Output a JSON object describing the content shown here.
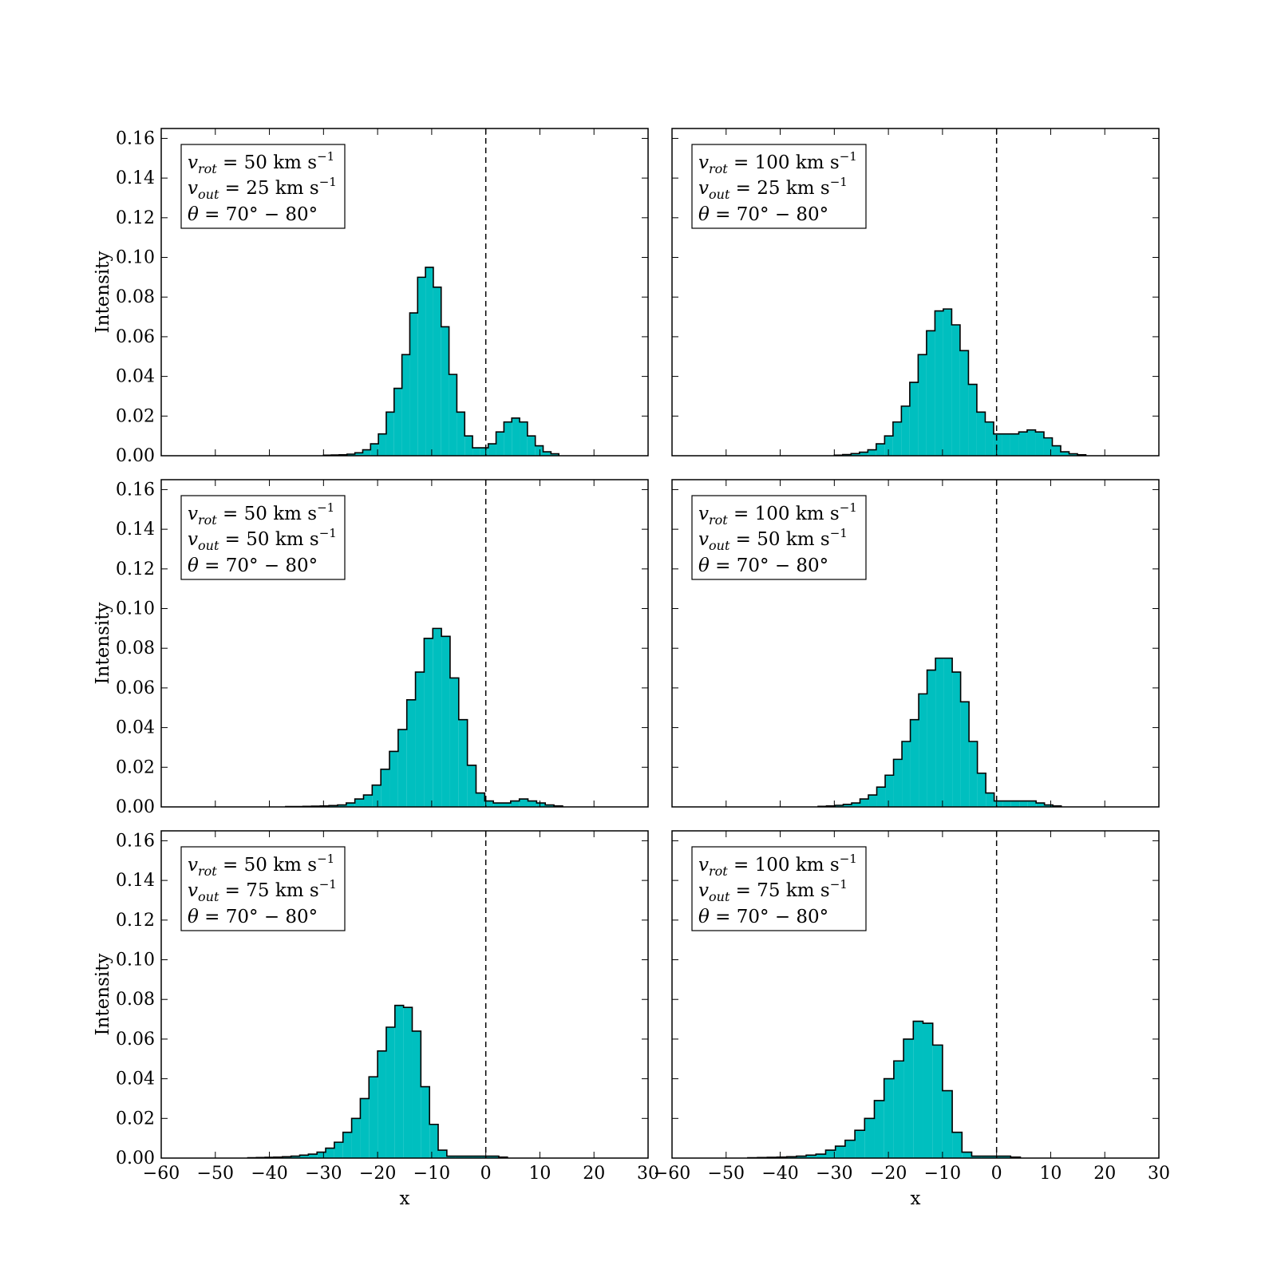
{
  "chart_data": [
    {
      "type": "histogram",
      "xlabel": "",
      "ylabel": "Intensity",
      "xlim": [
        -60,
        30
      ],
      "ylim": [
        0,
        0.165
      ],
      "xticks": [
        -60,
        -50,
        -40,
        -30,
        -20,
        -10,
        0,
        10,
        20,
        30
      ],
      "yticks": [
        0.0,
        0.02,
        0.04,
        0.06,
        0.08,
        0.1,
        0.12,
        0.14,
        0.16
      ],
      "ref_line_x": 0,
      "annotation": {
        "v_rot": "50",
        "v_out": "25",
        "theta": "70° − 80°"
      },
      "bin_edges_start": -30,
      "bin_width": 1.45,
      "values": [
        0.0003,
        0.0004,
        0.0005,
        0.0008,
        0.0015,
        0.003,
        0.006,
        0.011,
        0.022,
        0.034,
        0.051,
        0.072,
        0.09,
        0.095,
        0.085,
        0.065,
        0.041,
        0.022,
        0.01,
        0.004,
        0.004,
        0.006,
        0.012,
        0.017,
        0.019,
        0.017,
        0.01,
        0.005,
        0.002,
        0.001
      ]
    },
    {
      "type": "histogram",
      "xlabel": "",
      "ylabel": "",
      "xlim": [
        -60,
        30
      ],
      "ylim": [
        0,
        0.165
      ],
      "xticks": [
        -60,
        -50,
        -40,
        -30,
        -20,
        -10,
        0,
        10,
        20,
        30
      ],
      "yticks": [
        0.0,
        0.02,
        0.04,
        0.06,
        0.08,
        0.1,
        0.12,
        0.14,
        0.16
      ],
      "ref_line_x": 0,
      "annotation": {
        "v_rot": "100",
        "v_out": "25",
        "theta": "70° − 80°"
      },
      "bin_edges_start": -30,
      "bin_width": 1.55,
      "values": [
        0.0003,
        0.0006,
        0.0011,
        0.0018,
        0.003,
        0.006,
        0.01,
        0.017,
        0.025,
        0.037,
        0.051,
        0.063,
        0.073,
        0.074,
        0.066,
        0.053,
        0.036,
        0.022,
        0.017,
        0.011,
        0.011,
        0.011,
        0.012,
        0.013,
        0.012,
        0.009,
        0.005,
        0.002,
        0.001,
        0.0005
      ]
    },
    {
      "type": "histogram",
      "xlabel": "",
      "ylabel": "Intensity",
      "xlim": [
        -60,
        30
      ],
      "ylim": [
        0,
        0.165
      ],
      "xticks": [
        -60,
        -50,
        -40,
        -30,
        -20,
        -10,
        0,
        10,
        20,
        30
      ],
      "yticks": [
        0.0,
        0.02,
        0.04,
        0.06,
        0.08,
        0.1,
        0.12,
        0.14,
        0.16
      ],
      "ref_line_x": 0,
      "annotation": {
        "v_rot": "50",
        "v_out": "50",
        "theta": "70° − 80°"
      },
      "bin_edges_start": -37,
      "bin_width": 1.6,
      "values": [
        0.0002,
        0.0002,
        0.0003,
        0.0004,
        0.0005,
        0.0007,
        0.001,
        0.002,
        0.004,
        0.006,
        0.011,
        0.019,
        0.028,
        0.039,
        0.054,
        0.068,
        0.085,
        0.09,
        0.086,
        0.065,
        0.044,
        0.021,
        0.007,
        0.003,
        0.002,
        0.002,
        0.003,
        0.004,
        0.003,
        0.002,
        0.001,
        0.0005
      ]
    },
    {
      "type": "histogram",
      "xlabel": "",
      "ylabel": "",
      "xlim": [
        -60,
        30
      ],
      "ylim": [
        0,
        0.165
      ],
      "xticks": [
        -60,
        -50,
        -40,
        -30,
        -20,
        -10,
        0,
        10,
        20,
        30
      ],
      "yticks": [
        0.0,
        0.02,
        0.04,
        0.06,
        0.08,
        0.1,
        0.12,
        0.14,
        0.16
      ],
      "ref_line_x": 0,
      "annotation": {
        "v_rot": "100",
        "v_out": "50",
        "theta": "70° − 80°"
      },
      "bin_edges_start": -33,
      "bin_width": 1.55,
      "values": [
        0.0003,
        0.0005,
        0.0008,
        0.0013,
        0.002,
        0.004,
        0.006,
        0.01,
        0.016,
        0.024,
        0.033,
        0.044,
        0.057,
        0.069,
        0.075,
        0.075,
        0.068,
        0.053,
        0.033,
        0.017,
        0.007,
        0.003,
        0.003,
        0.003,
        0.003,
        0.003,
        0.002,
        0.001,
        0.0005
      ]
    },
    {
      "type": "histogram",
      "xlabel": "x",
      "ylabel": "Intensity",
      "xlim": [
        -60,
        30
      ],
      "ylim": [
        0,
        0.165
      ],
      "xticks": [
        -60,
        -50,
        -40,
        -30,
        -20,
        -10,
        0,
        10,
        20,
        30
      ],
      "yticks": [
        0.0,
        0.02,
        0.04,
        0.06,
        0.08,
        0.1,
        0.12,
        0.14,
        0.16
      ],
      "ref_line_x": 0,
      "annotation": {
        "v_rot": "50",
        "v_out": "75",
        "theta": "70° − 80°"
      },
      "bin_edges_start": -44,
      "bin_width": 1.6,
      "values": [
        0.0002,
        0.0003,
        0.0004,
        0.0005,
        0.0007,
        0.001,
        0.0015,
        0.002,
        0.003,
        0.005,
        0.008,
        0.013,
        0.02,
        0.03,
        0.041,
        0.054,
        0.066,
        0.077,
        0.076,
        0.064,
        0.036,
        0.017,
        0.004,
        0.001,
        0.001,
        0.001,
        0.001,
        0.001,
        0.001,
        0.0005
      ]
    },
    {
      "type": "histogram",
      "xlabel": "x",
      "ylabel": "",
      "xlim": [
        -60,
        30
      ],
      "ylim": [
        0,
        0.165
      ],
      "xticks": [
        -60,
        -50,
        -40,
        -30,
        -20,
        -10,
        0,
        10,
        20,
        30
      ],
      "yticks": [
        0.0,
        0.02,
        0.04,
        0.06,
        0.08,
        0.1,
        0.12,
        0.14,
        0.16
      ],
      "ref_line_x": 0,
      "annotation": {
        "v_rot": "100",
        "v_out": "75",
        "theta": "70° − 80°"
      },
      "bin_edges_start": -46,
      "bin_width": 1.8,
      "values": [
        0.0002,
        0.0003,
        0.0004,
        0.0005,
        0.0007,
        0.001,
        0.0015,
        0.002,
        0.004,
        0.006,
        0.009,
        0.014,
        0.02,
        0.029,
        0.04,
        0.049,
        0.06,
        0.069,
        0.068,
        0.057,
        0.034,
        0.013,
        0.003,
        0.001,
        0.001,
        0.001,
        0.001,
        0.0005
      ]
    }
  ],
  "style": {
    "fill_color": "#00bfbf",
    "edge_color": "#000000",
    "ref_line_color": "#000000"
  }
}
